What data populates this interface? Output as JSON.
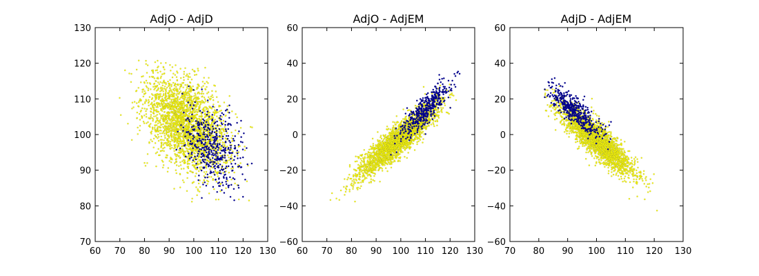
{
  "figure": {
    "background": "#ffffff",
    "point_colors": {
      "primary": "#ffff00",
      "secondary": "#00008b",
      "outline": "#555555"
    }
  },
  "chart_data": [
    {
      "type": "scatter",
      "title": "AdjO - AdjD",
      "xlabel": "",
      "ylabel": "",
      "xlim": [
        60,
        130
      ],
      "ylim": [
        70,
        130
      ],
      "xticks": [
        "60",
        "70",
        "80",
        "90",
        "100",
        "110",
        "120",
        "130"
      ],
      "yticks": [
        "70",
        "80",
        "90",
        "100",
        "110",
        "120",
        "130"
      ],
      "grid": false,
      "series": [
        {
          "role": "bulk",
          "color": "#ffff00",
          "count": 2600,
          "center": [
            97,
            103
          ],
          "spread": [
            8.5,
            7
          ],
          "correlation": -0.45
        },
        {
          "role": "overlay",
          "color": "#00008b",
          "count": 450,
          "center": [
            108,
            96
          ],
          "spread": [
            6,
            6
          ],
          "correlation": -0.4
        }
      ],
      "extrema_approx": {
        "x": [
          68,
          124
        ],
        "y": [
          81,
          121
        ]
      }
    },
    {
      "type": "scatter",
      "title": "AdjO - AdjEM",
      "xlabel": "",
      "ylabel": "",
      "xlim": [
        60,
        130
      ],
      "ylim": [
        -60,
        60
      ],
      "xticks": [
        "60",
        "70",
        "80",
        "90",
        "100",
        "110",
        "120",
        "130"
      ],
      "yticks": [
        "−60",
        "−40",
        "−20",
        "0",
        "20",
        "40",
        "60"
      ],
      "grid": false,
      "series": [
        {
          "role": "bulk",
          "color": "#ffff00",
          "count": 2600,
          "center": [
            99,
            -3
          ],
          "spread": [
            8,
            10
          ],
          "correlation": 0.9
        },
        {
          "role": "overlay",
          "color": "#00008b",
          "count": 450,
          "center": [
            110,
            14
          ],
          "spread": [
            5,
            8
          ],
          "correlation": 0.85
        }
      ],
      "extrema_approx": {
        "x": [
          68,
          124
        ],
        "y": [
          -46,
          37
        ]
      }
    },
    {
      "type": "scatter",
      "title": "AdjD - AdjEM",
      "xlabel": "",
      "ylabel": "",
      "xlim": [
        70,
        130
      ],
      "ylim": [
        -60,
        60
      ],
      "xticks": [
        "70",
        "80",
        "90",
        "100",
        "110",
        "120",
        "130"
      ],
      "yticks": [
        "−60",
        "−40",
        "−20",
        "0",
        "20",
        "40",
        "60"
      ],
      "grid": false,
      "series": [
        {
          "role": "bulk",
          "color": "#ffff00",
          "count": 2600,
          "center": [
            100,
            -3
          ],
          "spread": [
            6.5,
            10
          ],
          "correlation": -0.88
        },
        {
          "role": "overlay",
          "color": "#00008b",
          "count": 450,
          "center": [
            92,
            14
          ],
          "spread": [
            5,
            8
          ],
          "correlation": -0.85
        }
      ],
      "extrema_approx": {
        "x": [
          82,
          121
        ],
        "y": [
          -46,
          37
        ]
      }
    }
  ]
}
